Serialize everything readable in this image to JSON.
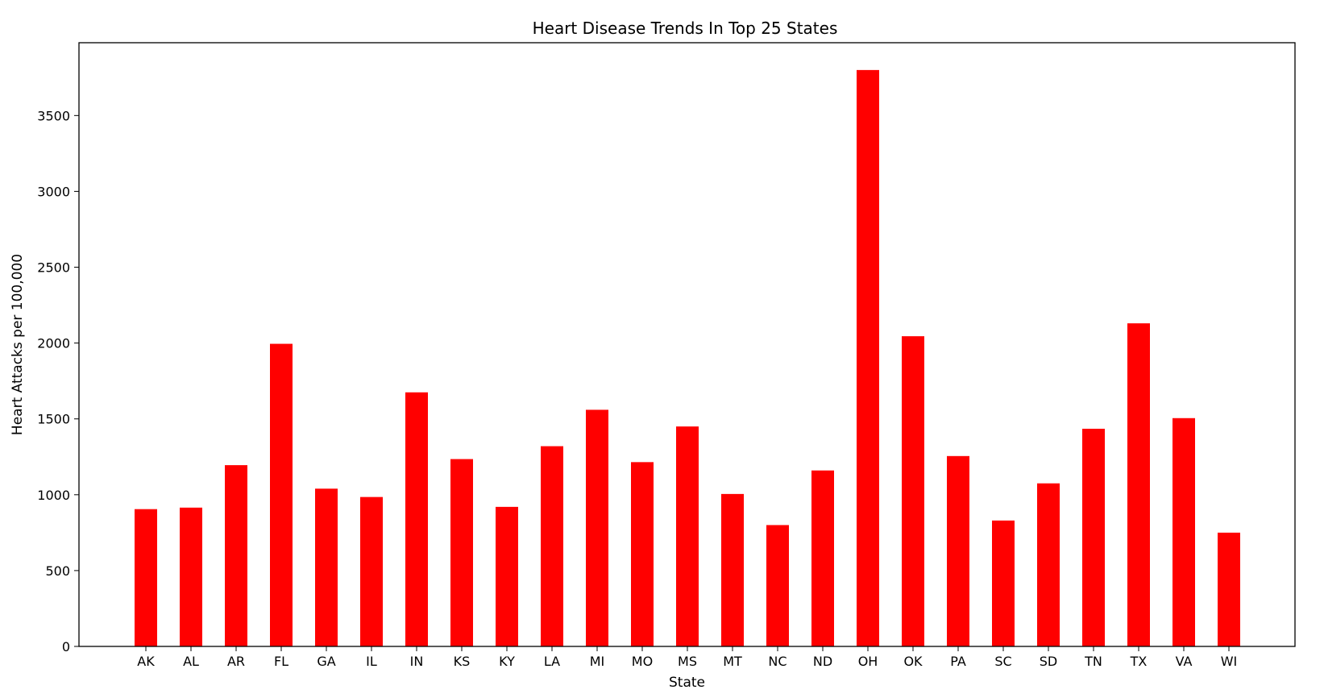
{
  "chart_data": {
    "type": "bar",
    "title": "Heart Disease Trends In Top 25 States",
    "xlabel": "State",
    "ylabel": "Heart Attacks per 100,000",
    "categories": [
      "AK",
      "AL",
      "AR",
      "FL",
      "GA",
      "IL",
      "IN",
      "KS",
      "KY",
      "LA",
      "MI",
      "MO",
      "MS",
      "MT",
      "NC",
      "ND",
      "OH",
      "OK",
      "PA",
      "SC",
      "SD",
      "TN",
      "TX",
      "VA",
      "WI"
    ],
    "values": [
      905,
      915,
      1195,
      1995,
      1040,
      985,
      1675,
      1235,
      920,
      1320,
      1560,
      1215,
      1450,
      1005,
      800,
      1160,
      3800,
      2045,
      1255,
      830,
      1075,
      1435,
      2130,
      1505,
      750
    ],
    "ylim": [
      0,
      3980
    ],
    "yticks": [
      0,
      500,
      1000,
      1500,
      2000,
      2500,
      3000,
      3500
    ],
    "bar_color": "#ff0000",
    "grid": false,
    "legend": "none"
  }
}
